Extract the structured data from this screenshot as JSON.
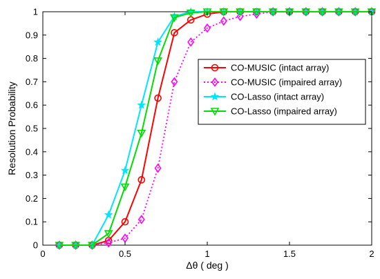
{
  "chart_data": {
    "type": "line",
    "xlabel": "Δθ ( deg )",
    "ylabel": "Resolution Probability",
    "xlim": [
      0,
      2
    ],
    "ylim": [
      0,
      1
    ],
    "xticks": [
      "0",
      "0.5",
      "1",
      "1.5",
      "2"
    ],
    "yticks": [
      "0",
      "0.1",
      "0.2",
      "0.3",
      "0.4",
      "0.5",
      "0.6",
      "0.7",
      "0.8",
      "0.9",
      "1"
    ],
    "grid": false,
    "legend_position": "right",
    "x": [
      0.1,
      0.2,
      0.3,
      0.4,
      0.5,
      0.6,
      0.7,
      0.8,
      0.9,
      1.0,
      1.1,
      1.2,
      1.3,
      1.4,
      1.5,
      1.6,
      1.7,
      1.8,
      1.9,
      2.0
    ],
    "series": [
      {
        "name": "CO-MUSIC (intact array)",
        "color": "#ff0000",
        "marker": "circle",
        "line_style": "solid",
        "values": [
          0,
          0,
          0,
          0.02,
          0.1,
          0.28,
          0.63,
          0.91,
          0.965,
          0.99,
          1,
          1,
          1,
          1,
          1,
          1,
          1,
          1,
          1,
          1
        ]
      },
      {
        "name": "CO-MUSIC (impaired array)",
        "color": "#ff00ff",
        "marker": "diamond",
        "line_style": "dotted",
        "values": [
          0,
          0,
          0,
          0.01,
          0.03,
          0.11,
          0.33,
          0.7,
          0.87,
          0.93,
          0.96,
          0.98,
          0.99,
          1,
          1,
          1,
          1,
          1,
          1,
          1
        ]
      },
      {
        "name": "CO-Lasso (intact array)",
        "color": "#00e5ff",
        "marker": "star",
        "line_style": "solid",
        "values": [
          0,
          0,
          0,
          0.13,
          0.32,
          0.6,
          0.87,
          0.98,
          1,
          1,
          1,
          1,
          1,
          1,
          1,
          1,
          1,
          1,
          1,
          1
        ]
      },
      {
        "name": "CO-Lasso (impaired array)",
        "color": "#00dd00",
        "marker": "triangle-down",
        "line_style": "solid",
        "values": [
          0,
          0,
          0,
          0.05,
          0.25,
          0.48,
          0.79,
          0.975,
          0.995,
          1,
          1,
          1,
          1,
          1,
          1,
          1,
          1,
          1,
          1,
          1
        ]
      }
    ]
  }
}
